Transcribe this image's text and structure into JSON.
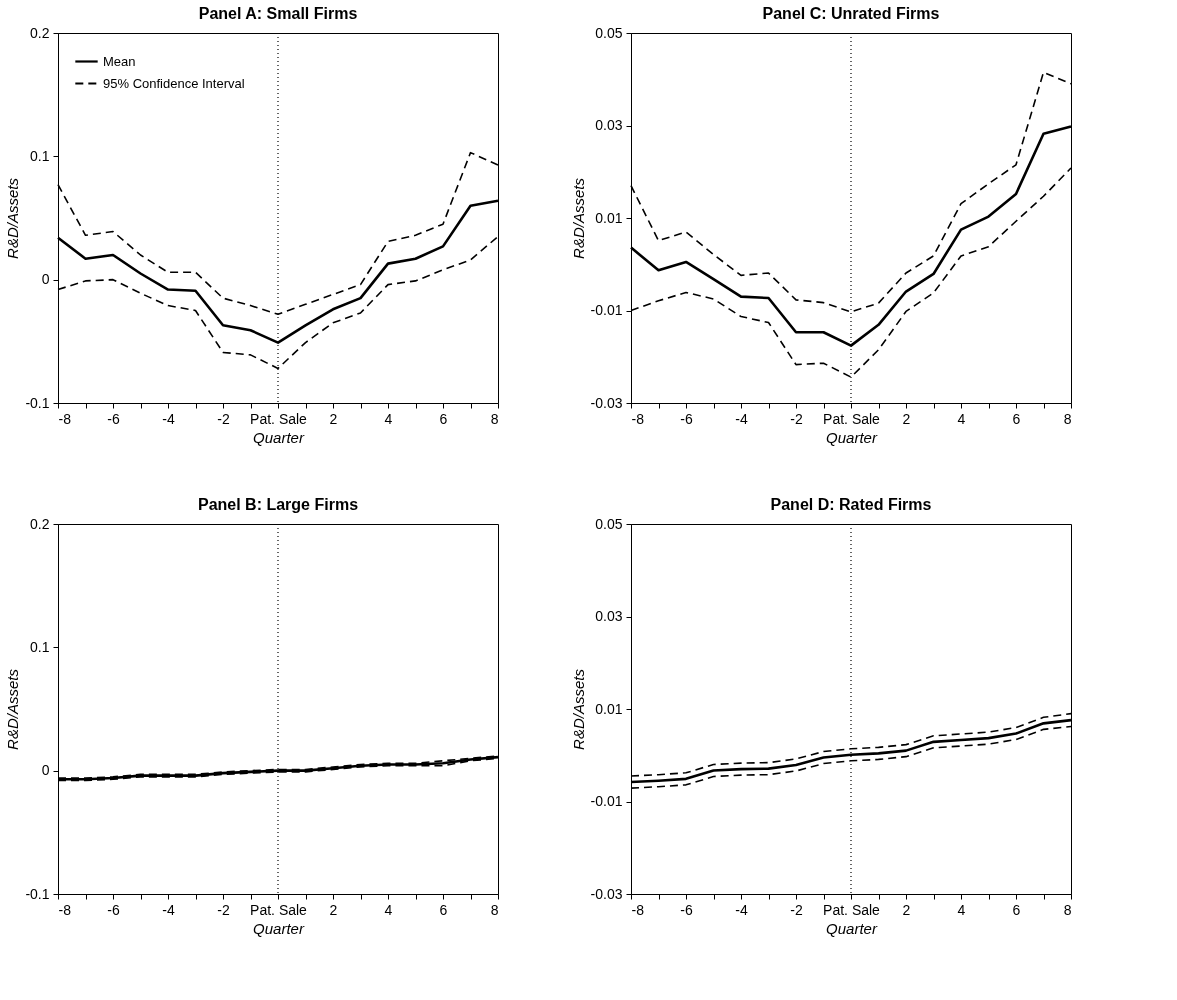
{
  "chart_data": [
    {
      "type": "line",
      "title": "Panel A: Small Firms",
      "xlabel": "Quarter",
      "ylabel": "R&D/Assets",
      "legend": "top left",
      "grid": false,
      "x": [
        -8,
        -7,
        -6,
        -5,
        -4,
        -3,
        -2,
        -1,
        0,
        1,
        2,
        3,
        4,
        5,
        6,
        7,
        8
      ],
      "xlim": [
        -8,
        8
      ],
      "xticks": [
        -8,
        {
          "value": -7,
          "label": null
        },
        -6,
        {
          "value": -5,
          "label": null
        },
        -4,
        {
          "value": -3,
          "label": null
        },
        -2,
        {
          "value": -1,
          "label": null
        },
        {
          "value": 0,
          "label": "Pat. Sale"
        },
        {
          "value": 1,
          "label": null
        },
        2,
        {
          "value": 3,
          "label": null
        },
        4,
        {
          "value": 5,
          "label": null
        },
        6,
        {
          "value": 7,
          "label": null
        },
        8
      ],
      "ylim": [
        -0.1,
        0.2
      ],
      "yticks": [
        -0.1,
        0,
        0.1,
        0.2
      ],
      "series": [
        {
          "name": "Mean",
          "color": "#000000",
          "line_style": "solid",
          "values": [
            0.034,
            0.017,
            0.02,
            0.005,
            -0.008,
            -0.009,
            -0.037,
            -0.041,
            -0.051,
            -0.037,
            -0.024,
            -0.015,
            0.013,
            0.017,
            0.027,
            0.06,
            0.064
          ]
        },
        {
          "name": "95% Confidence Interval",
          "color": "#000000",
          "line_style": "dashed",
          "values": [
            0.077,
            0.036,
            0.039,
            0.02,
            0.006,
            0.006,
            -0.015,
            -0.021,
            -0.028,
            -0.02,
            -0.012,
            -0.004,
            0.031,
            0.036,
            0.045,
            0.103,
            0.093
          ]
        },
        {
          "color": "#000000",
          "line_style": "dashed",
          "values": [
            -0.008,
            -0.001,
            0.0,
            -0.011,
            -0.021,
            -0.025,
            -0.059,
            -0.061,
            -0.072,
            -0.051,
            -0.035,
            -0.027,
            -0.004,
            -0.001,
            0.008,
            0.016,
            0.035
          ]
        }
      ],
      "ref_lines": [
        {
          "axis": "x",
          "value": 0,
          "color": "#000000",
          "line_style": "dotted"
        }
      ]
    },
    {
      "type": "line",
      "title": "Panel C: Unrated Firms",
      "xlabel": "Quarter",
      "ylabel": "R&D/Assets",
      "grid": false,
      "x": [
        -8,
        -7,
        -6,
        -5,
        -4,
        -3,
        -2,
        -1,
        0,
        1,
        2,
        3,
        4,
        5,
        6,
        7,
        8
      ],
      "xlim": [
        -8,
        8
      ],
      "xticks": [
        -8,
        {
          "value": -7,
          "label": null
        },
        -6,
        {
          "value": -5,
          "label": null
        },
        -4,
        {
          "value": -3,
          "label": null
        },
        -2,
        {
          "value": -1,
          "label": null
        },
        {
          "value": 0,
          "label": "Pat. Sale"
        },
        {
          "value": 1,
          "label": null
        },
        2,
        {
          "value": 3,
          "label": null
        },
        4,
        {
          "value": 5,
          "label": null
        },
        6,
        {
          "value": 7,
          "label": null
        },
        8
      ],
      "ylim": [
        -0.03,
        0.05
      ],
      "yticks": [
        -0.03,
        -0.01,
        0.01,
        0.03,
        0.05
      ],
      "series": [
        {
          "color": "#000000",
          "line_style": "solid",
          "values": [
            0.0036,
            -0.0013,
            0.0005,
            -0.0032,
            -0.007,
            -0.0073,
            -0.0147,
            -0.0147,
            -0.0176,
            -0.0131,
            -0.0059,
            -0.0021,
            0.0075,
            0.0103,
            0.0152,
            0.0282,
            0.0298
          ]
        },
        {
          "color": "#000000",
          "line_style": "dashed",
          "values": [
            0.017,
            0.0051,
            0.007,
            0.0021,
            -0.0024,
            -0.0019,
            -0.0077,
            -0.0083,
            -0.0103,
            -0.0084,
            -0.0019,
            0.0018,
            0.0131,
            0.0174,
            0.0215,
            0.0415,
            0.039
          ]
        },
        {
          "color": "#000000",
          "line_style": "dashed",
          "values": [
            -0.01,
            -0.0079,
            -0.0061,
            -0.0075,
            -0.0113,
            -0.0126,
            -0.0217,
            -0.0214,
            -0.0244,
            -0.0185,
            -0.0102,
            -0.0062,
            0.0018,
            0.0038,
            0.0093,
            0.0147,
            0.0208
          ]
        }
      ],
      "ref_lines": [
        {
          "axis": "x",
          "value": 0,
          "color": "#000000",
          "line_style": "dotted"
        }
      ]
    },
    {
      "type": "line",
      "title": "Panel B: Large Firms",
      "xlabel": "Quarter",
      "ylabel": "R&D/Assets",
      "grid": false,
      "x": [
        -8,
        -7,
        -6,
        -5,
        -4,
        -3,
        -2,
        -1,
        0,
        1,
        2,
        3,
        4,
        5,
        6,
        7,
        8
      ],
      "xlim": [
        -8,
        8
      ],
      "xticks": [
        -8,
        {
          "value": -7,
          "label": null
        },
        -6,
        {
          "value": -5,
          "label": null
        },
        -4,
        {
          "value": -3,
          "label": null
        },
        {
          "value": -2,
          "label": "-2"
        },
        {
          "value": -1,
          "label": null
        },
        {
          "value": 0,
          "label": "Pat. Sale"
        },
        {
          "value": 1,
          "label": null
        },
        2,
        {
          "value": 3,
          "label": null
        },
        4,
        {
          "value": 5,
          "label": null
        },
        6,
        {
          "value": 7,
          "label": null
        },
        8
      ],
      "ylim": [
        -0.1,
        0.2
      ],
      "yticks": [
        -0.1,
        0,
        0.1,
        0.2
      ],
      "series": [
        {
          "color": "#000000",
          "line_style": "solid",
          "values": [
            -0.007,
            -0.007,
            -0.006,
            -0.004,
            -0.004,
            -0.004,
            -0.002,
            -0.001,
            0.0,
            0.0,
            0.002,
            0.004,
            0.005,
            0.005,
            0.006,
            0.009,
            0.011
          ]
        },
        {
          "color": "#000000",
          "line_style": "dashed",
          "values": [
            -0.006,
            -0.006,
            -0.005,
            -0.003,
            -0.003,
            -0.003,
            -0.001,
            0.0,
            0.001,
            0.001,
            0.003,
            0.005,
            0.006,
            0.006,
            0.008,
            0.01,
            0.012
          ]
        },
        {
          "color": "#000000",
          "line_style": "dashed",
          "values": [
            -0.008,
            -0.008,
            -0.007,
            -0.005,
            -0.005,
            -0.005,
            -0.003,
            -0.002,
            -0.001,
            -0.001,
            0.001,
            0.003,
            0.004,
            0.004,
            0.004,
            0.008,
            0.01
          ]
        }
      ],
      "ref_lines": [
        {
          "axis": "x",
          "value": 0,
          "color": "#000000",
          "line_style": "dotted"
        }
      ]
    },
    {
      "type": "line",
      "title": "Panel D: Rated Firms",
      "xlabel": "Quarter",
      "ylabel": "R&D/Assets",
      "grid": false,
      "x": [
        -8,
        -7,
        -6,
        -5,
        -4,
        -3,
        -2,
        -1,
        0,
        1,
        2,
        3,
        4,
        5,
        6,
        7,
        8
      ],
      "xlim": [
        -8,
        8
      ],
      "xticks": [
        -8,
        {
          "value": -7,
          "label": null
        },
        -6,
        {
          "value": -5,
          "label": null
        },
        -4,
        {
          "value": -3,
          "label": null
        },
        -2,
        {
          "value": -1,
          "label": null
        },
        {
          "value": 0,
          "label": "Pat. Sale"
        },
        {
          "value": 1,
          "label": null
        },
        2,
        {
          "value": 3,
          "label": null
        },
        4,
        {
          "value": 5,
          "label": null
        },
        6,
        {
          "value": 7,
          "label": null
        },
        8
      ],
      "ylim": [
        -0.03,
        0.05
      ],
      "yticks": [
        -0.03,
        -0.01,
        0.01,
        0.03,
        0.05
      ],
      "series": [
        {
          "color": "#000000",
          "line_style": "solid",
          "values": [
            -0.0058,
            -0.0055,
            -0.0051,
            -0.0033,
            -0.003,
            -0.0029,
            -0.0021,
            -0.0005,
            0.0001,
            0.0004,
            0.001,
            0.0029,
            0.0033,
            0.0037,
            0.0047,
            0.0069,
            0.0076
          ]
        },
        {
          "color": "#000000",
          "line_style": "dashed",
          "values": [
            -0.0045,
            -0.0042,
            -0.0038,
            -0.002,
            -0.0017,
            -0.0016,
            -0.0008,
            0.0008,
            0.0014,
            0.0017,
            0.0023,
            0.0042,
            0.0046,
            0.005,
            0.006,
            0.0082,
            0.009
          ]
        },
        {
          "color": "#000000",
          "line_style": "dashed",
          "values": [
            -0.0071,
            -0.0068,
            -0.0064,
            -0.0046,
            -0.0043,
            -0.0042,
            -0.0034,
            -0.0018,
            -0.0012,
            -0.0009,
            -0.0003,
            0.0016,
            0.002,
            0.0024,
            0.0034,
            0.0056,
            0.0062
          ]
        }
      ],
      "ref_lines": [
        {
          "axis": "x",
          "value": 0,
          "color": "#000000",
          "line_style": "dotted"
        }
      ]
    }
  ]
}
